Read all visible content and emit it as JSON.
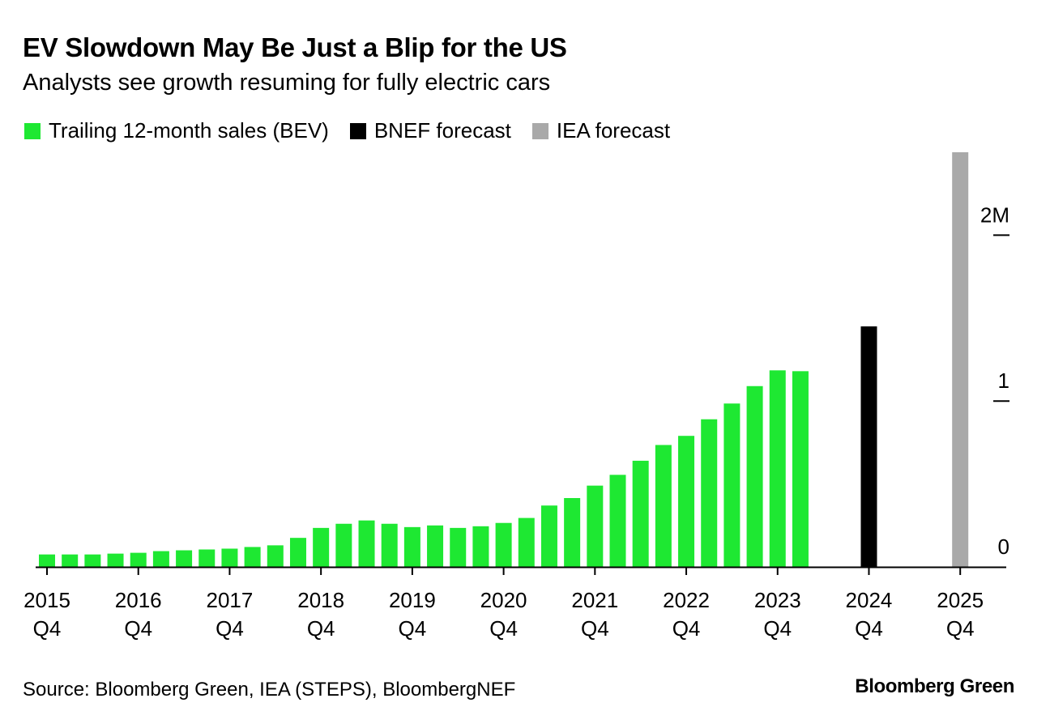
{
  "chart_data": {
    "type": "bar",
    "title": "EV Slowdown May Be Just a Blip for the US",
    "subtitle": "Analysts see growth resuming for fully electric cars",
    "legend": [
      {
        "name": "Trailing 12-month sales (BEV)",
        "color": "#1ee832"
      },
      {
        "name": "BNEF forecast",
        "color": "#000000"
      },
      {
        "name": "IEA forecast",
        "color": "#a9a9a9"
      }
    ],
    "legend_placement": "top-left",
    "y_axis": {
      "position": "right",
      "ylim": [
        0,
        2.5
      ],
      "ticks": [
        0,
        1,
        2
      ],
      "tick_labels": [
        "0",
        "1",
        "2M"
      ]
    },
    "x_tick_labels": [
      [
        "2015",
        "Q4"
      ],
      [
        "2016",
        "Q4"
      ],
      [
        "2017",
        "Q4"
      ],
      [
        "2018",
        "Q4"
      ],
      [
        "2019",
        "Q4"
      ],
      [
        "2020",
        "Q4"
      ],
      [
        "2021",
        "Q4"
      ],
      [
        "2022",
        "Q4"
      ],
      [
        "2023",
        "Q4"
      ],
      [
        "2024",
        "Q4"
      ],
      [
        "2025",
        "Q4"
      ]
    ],
    "series": [
      {
        "name": "Trailing 12-month sales (BEV)",
        "color": "#1ee832",
        "start": "2015 Q4",
        "period": "quarter",
        "values": [
          0.075,
          0.075,
          0.075,
          0.08,
          0.085,
          0.095,
          0.1,
          0.105,
          0.11,
          0.12,
          0.13,
          0.175,
          0.235,
          0.26,
          0.28,
          0.26,
          0.24,
          0.25,
          0.235,
          0.245,
          0.265,
          0.295,
          0.37,
          0.415,
          0.49,
          0.555,
          0.64,
          0.735,
          0.79,
          0.89,
          0.985,
          1.09,
          1.185,
          1.18
        ]
      },
      {
        "name": "BNEF forecast",
        "color": "#000000",
        "period": "2024 Q4",
        "value": 1.45
      },
      {
        "name": "IEA forecast",
        "color": "#a9a9a9",
        "period": "2025 Q4",
        "value": 2.5
      }
    ]
  },
  "footer": {
    "source": "Source: Bloomberg Green, IEA (STEPS), BloombergNEF",
    "brand": "Bloomberg Green"
  }
}
